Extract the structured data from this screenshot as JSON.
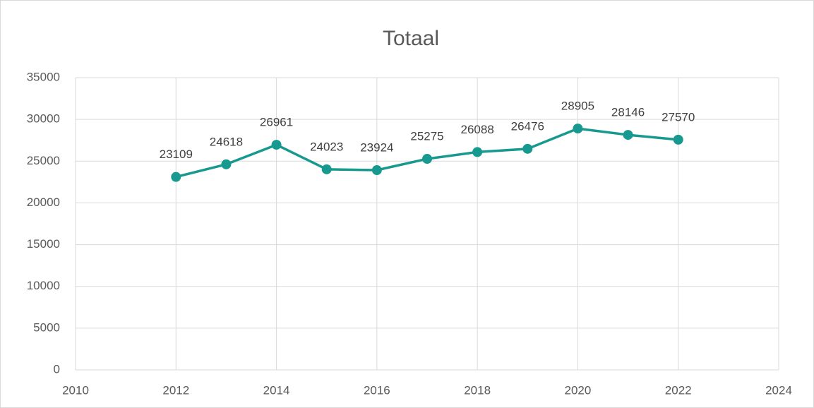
{
  "chart_data": {
    "type": "line",
    "title": "Totaal",
    "x": [
      2012,
      2013,
      2014,
      2015,
      2016,
      2017,
      2018,
      2019,
      2020,
      2021,
      2022
    ],
    "values": [
      23109,
      24618,
      26961,
      24023,
      23924,
      25275,
      26088,
      26476,
      28905,
      28146,
      27570
    ],
    "color": "#17998f",
    "xlim": [
      2010,
      2024
    ],
    "xticks": [
      2010,
      2012,
      2014,
      2016,
      2018,
      2020,
      2022,
      2024
    ],
    "ylim": [
      0,
      35000
    ],
    "yticks": [
      0,
      5000,
      10000,
      15000,
      20000,
      25000,
      30000,
      35000
    ],
    "grid": true
  }
}
